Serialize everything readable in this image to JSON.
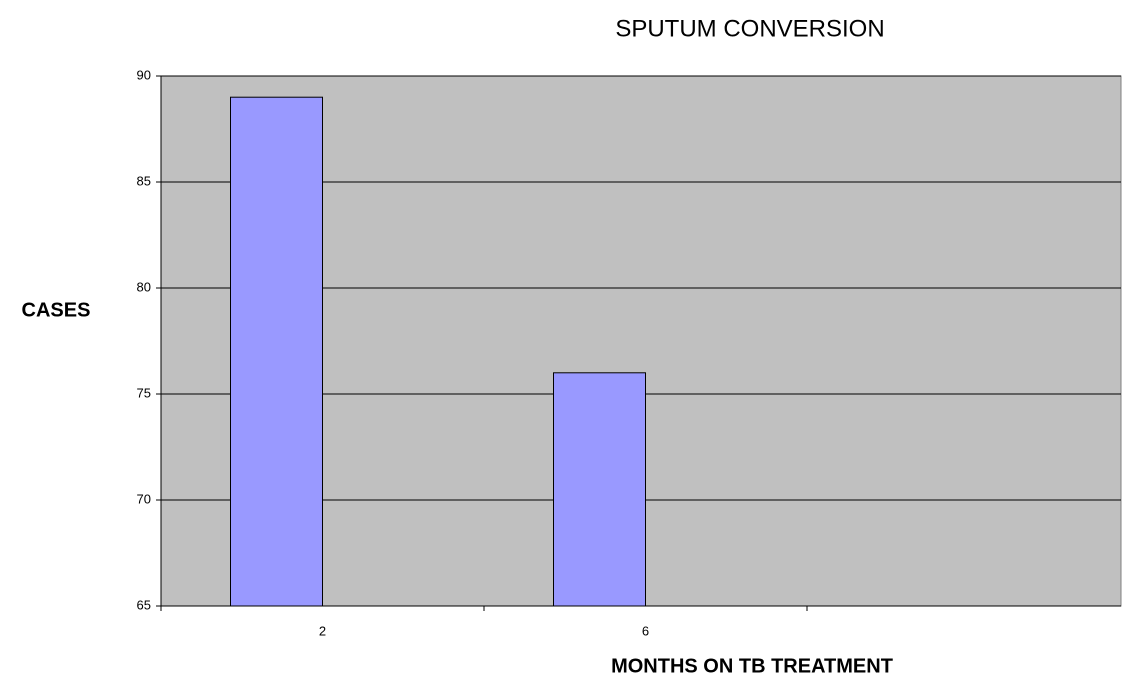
{
  "chart_data": {
    "type": "bar",
    "title": "SPUTUM CONVERSION",
    "x_label": "MONTHS ON TB TREATMENT",
    "y_label": "CASES",
    "categories": [
      "2",
      "6",
      null
    ],
    "values": [
      89,
      76,
      null
    ],
    "color": "#9999ff",
    "ylim": [
      65,
      90
    ],
    "yticks": [
      65,
      70,
      75,
      80,
      85,
      90
    ],
    "grid": true
  }
}
